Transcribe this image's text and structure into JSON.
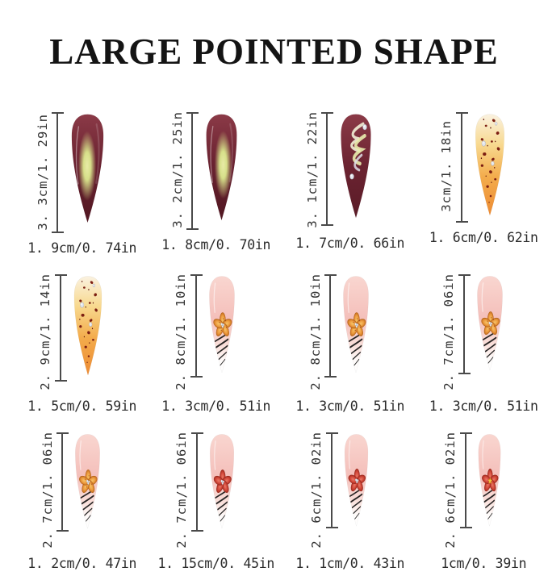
{
  "title": "LARGE POINTED SHAPE",
  "colors": {
    "background": "#FFFFFF",
    "title_text": "#141414",
    "measure_text": "#333333",
    "measure_line": "#4A4A4A",
    "burgundy": "#6B2331",
    "cat_eye_glow": "#DCE98E",
    "leopard_orange": "#ED8B33",
    "leopard_spot": "#7C1E12",
    "base_pink": "#F4BFBA",
    "flower_orange": "#EC9A3E",
    "flower_red": "#D2483A",
    "star_yellow": "#F2C43F",
    "zebra_stripe": "#141414",
    "rhinestone": "#E3E6ED"
  },
  "nails": [
    {
      "height_label": "3. 3cm/1. 29in",
      "width_label": "1. 9cm/0. 74in",
      "height_cm": 3.3,
      "width_cm": 1.9,
      "design": "cat-eye-glow"
    },
    {
      "height_label": "3. 2cm/1. 25in",
      "width_label": "1. 8cm/0. 70in",
      "height_cm": 3.2,
      "width_cm": 1.8,
      "design": "cat-eye-glow"
    },
    {
      "height_label": "3. 1cm/1. 22in",
      "width_label": "1. 7cm/0. 66in",
      "height_cm": 3.1,
      "width_cm": 1.7,
      "design": "swirl-rhinestone"
    },
    {
      "height_label": "3cm/1. 18in",
      "width_label": "1. 6cm/0. 62in",
      "height_cm": 3.0,
      "width_cm": 1.6,
      "design": "leopard"
    },
    {
      "height_label": "2. 9cm/1. 14in",
      "width_label": "1. 5cm/0. 59in",
      "height_cm": 2.9,
      "width_cm": 1.5,
      "design": "leopard"
    },
    {
      "height_label": "2. 8cm/1. 10in",
      "width_label": "1. 3cm/0. 51in",
      "height_cm": 2.8,
      "width_cm": 1.3,
      "design": "orange-flower-zebra"
    },
    {
      "height_label": "2. 8cm/1. 10in",
      "width_label": "1. 3cm/0. 51in",
      "height_cm": 2.8,
      "width_cm": 1.3,
      "design": "orange-flower-zebra"
    },
    {
      "height_label": "2. 7cm/1. 06in",
      "width_label": "1. 3cm/0. 51in",
      "height_cm": 2.7,
      "width_cm": 1.3,
      "design": "orange-flower-zebra"
    },
    {
      "height_label": "2. 7cm/1. 06in",
      "width_label": "1. 2cm/0. 47in",
      "height_cm": 2.7,
      "width_cm": 1.2,
      "design": "orange-flower-zebra"
    },
    {
      "height_label": "2. 7cm/1. 06in",
      "width_label": "1. 15cm/0. 45in",
      "height_cm": 2.7,
      "width_cm": 1.15,
      "design": "red-flower-zebra"
    },
    {
      "height_label": "2. 6cm/1. 02in",
      "width_label": "1. 1cm/0. 43in",
      "height_cm": 2.6,
      "width_cm": 1.1,
      "design": "red-flower-zebra"
    },
    {
      "height_label": "2. 6cm/1. 02in",
      "width_label": "1cm/0. 39in",
      "height_cm": 2.6,
      "width_cm": 1.0,
      "design": "red-flower-star-zebra"
    }
  ]
}
